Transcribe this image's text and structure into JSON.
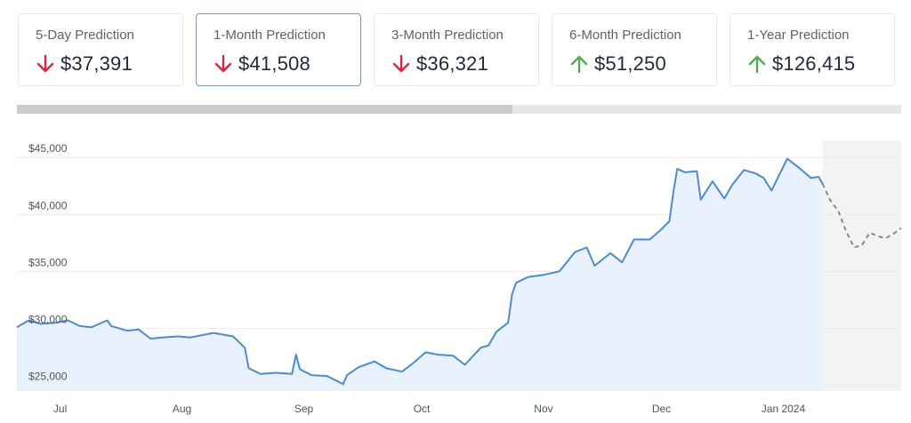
{
  "prediction_cards": [
    {
      "label": "5-Day Prediction",
      "value": "$37,391",
      "direction": "down",
      "active": false
    },
    {
      "label": "1-Month Prediction",
      "value": "$41,508",
      "direction": "down",
      "active": true
    },
    {
      "label": "3-Month Prediction",
      "value": "$36,321",
      "direction": "down",
      "active": false
    },
    {
      "label": "6-Month Prediction",
      "value": "$51,250",
      "direction": "up",
      "active": false
    },
    {
      "label": "1-Year Prediction",
      "value": "$126,415",
      "direction": "up",
      "active": false
    }
  ],
  "colors": {
    "down": "#e0223c",
    "up": "#4caf50",
    "line": "#4a8bd8",
    "area": "#e9f1fc",
    "forecast_line": "#8a8a8a",
    "forecast_area": "#f3f3f3",
    "grid": "#ececec"
  },
  "icons": {
    "down": "arrow-down-icon",
    "up": "arrow-up-icon"
  },
  "scrollbar": {
    "position": 0,
    "visible_fraction": 0.56
  },
  "chart_data": {
    "type": "line",
    "title": "",
    "xlabel": "",
    "ylabel": "",
    "ylim": [
      24500,
      46500
    ],
    "xlim": [
      "2023-06-20",
      "2024-01-31"
    ],
    "grid": true,
    "y_ticks": [
      {
        "value": 25000,
        "label": "$25,000"
      },
      {
        "value": 30000,
        "label": "$30,000"
      },
      {
        "value": 35000,
        "label": "$35,000"
      },
      {
        "value": 40000,
        "label": "$40,000"
      },
      {
        "value": 45000,
        "label": "$45,000"
      }
    ],
    "x_ticks": [
      {
        "date": "2023-07-01",
        "label": "Jul"
      },
      {
        "date": "2023-08-01",
        "label": "Aug"
      },
      {
        "date": "2023-09-01",
        "label": "Sep"
      },
      {
        "date": "2023-10-01",
        "label": "Oct"
      },
      {
        "date": "2023-11-01",
        "label": "Nov"
      },
      {
        "date": "2023-12-01",
        "label": "Dec"
      },
      {
        "date": "2024-01-01",
        "label": "Jan 2024"
      }
    ],
    "series": [
      {
        "kind": "actual",
        "points": [
          [
            "2023-06-20",
            30100
          ],
          [
            "2023-06-23",
            30700
          ],
          [
            "2023-06-26",
            30400
          ],
          [
            "2023-06-30",
            30500
          ],
          [
            "2023-07-03",
            30700
          ],
          [
            "2023-07-06",
            30200
          ],
          [
            "2023-07-09",
            30100
          ],
          [
            "2023-07-13",
            30700
          ],
          [
            "2023-07-14",
            30200
          ],
          [
            "2023-07-18",
            29800
          ],
          [
            "2023-07-21",
            29900
          ],
          [
            "2023-07-24",
            29100
          ],
          [
            "2023-07-27",
            29200
          ],
          [
            "2023-07-31",
            29300
          ],
          [
            "2023-08-03",
            29200
          ],
          [
            "2023-08-09",
            29600
          ],
          [
            "2023-08-14",
            29300
          ],
          [
            "2023-08-17",
            28300
          ],
          [
            "2023-08-18",
            26500
          ],
          [
            "2023-08-21",
            26000
          ],
          [
            "2023-08-25",
            26100
          ],
          [
            "2023-08-29",
            26000
          ],
          [
            "2023-08-30",
            27700
          ],
          [
            "2023-08-31",
            26400
          ],
          [
            "2023-09-03",
            25900
          ],
          [
            "2023-09-07",
            25800
          ],
          [
            "2023-09-11",
            25100
          ],
          [
            "2023-09-12",
            25900
          ],
          [
            "2023-09-15",
            26600
          ],
          [
            "2023-09-19",
            27100
          ],
          [
            "2023-09-22",
            26500
          ],
          [
            "2023-09-26",
            26200
          ],
          [
            "2023-09-29",
            27000
          ],
          [
            "2023-10-02",
            27900
          ],
          [
            "2023-10-05",
            27700
          ],
          [
            "2023-10-09",
            27600
          ],
          [
            "2023-10-12",
            26800
          ],
          [
            "2023-10-16",
            28300
          ],
          [
            "2023-10-18",
            28500
          ],
          [
            "2023-10-20",
            29700
          ],
          [
            "2023-10-23",
            30500
          ],
          [
            "2023-10-24",
            33000
          ],
          [
            "2023-10-25",
            34000
          ],
          [
            "2023-10-28",
            34500
          ],
          [
            "2023-11-01",
            34700
          ],
          [
            "2023-11-05",
            35000
          ],
          [
            "2023-11-09",
            36700
          ],
          [
            "2023-11-12",
            37100
          ],
          [
            "2023-11-14",
            35500
          ],
          [
            "2023-11-18",
            36600
          ],
          [
            "2023-11-21",
            35800
          ],
          [
            "2023-11-24",
            37800
          ],
          [
            "2023-11-28",
            37800
          ],
          [
            "2023-12-01",
            38700
          ],
          [
            "2023-12-03",
            39400
          ],
          [
            "2023-12-04",
            41900
          ],
          [
            "2023-12-05",
            44000
          ],
          [
            "2023-12-07",
            43700
          ],
          [
            "2023-12-10",
            43800
          ],
          [
            "2023-12-11",
            41300
          ],
          [
            "2023-12-14",
            42900
          ],
          [
            "2023-12-17",
            41400
          ],
          [
            "2023-12-19",
            42600
          ],
          [
            "2023-12-22",
            43900
          ],
          [
            "2023-12-25",
            43600
          ],
          [
            "2023-12-27",
            43200
          ],
          [
            "2023-12-29",
            42100
          ],
          [
            "2024-01-02",
            44900
          ],
          [
            "2024-01-05",
            44100
          ],
          [
            "2024-01-08",
            43200
          ],
          [
            "2024-01-10",
            43300
          ],
          [
            "2024-01-11",
            42700
          ]
        ]
      },
      {
        "kind": "forecast",
        "points": [
          [
            "2024-01-11",
            42700
          ],
          [
            "2024-01-13",
            41200
          ],
          [
            "2024-01-15",
            40300
          ],
          [
            "2024-01-17",
            38500
          ],
          [
            "2024-01-19",
            37100
          ],
          [
            "2024-01-21",
            37300
          ],
          [
            "2024-01-23",
            38400
          ],
          [
            "2024-01-25",
            38100
          ],
          [
            "2024-01-27",
            37900
          ],
          [
            "2024-01-29",
            38300
          ],
          [
            "2024-01-31",
            38800
          ]
        ]
      }
    ]
  }
}
